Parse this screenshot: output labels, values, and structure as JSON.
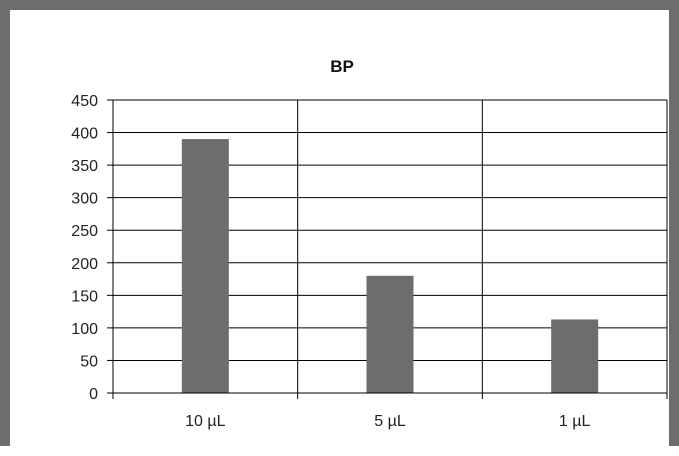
{
  "chart_data": {
    "type": "bar",
    "title": "BP",
    "xlabel": "",
    "ylabel": "",
    "categories": [
      "10 µL",
      "5 µL",
      "1 µL"
    ],
    "values": [
      390,
      180,
      113
    ],
    "ylim": [
      0,
      450
    ],
    "yticks": [
      0,
      50,
      100,
      150,
      200,
      250,
      300,
      350,
      400,
      450
    ],
    "ytick_labels": [
      "0",
      "50",
      "100",
      "150",
      "200",
      "250",
      "300",
      "350",
      "400",
      "450"
    ],
    "grid": {
      "horizontal": true,
      "vertical_category_separators": true
    },
    "legend": "none",
    "colors": {
      "bar": "#6d6d6f",
      "frame": "#6d6d6f",
      "grid": "#000000"
    }
  }
}
